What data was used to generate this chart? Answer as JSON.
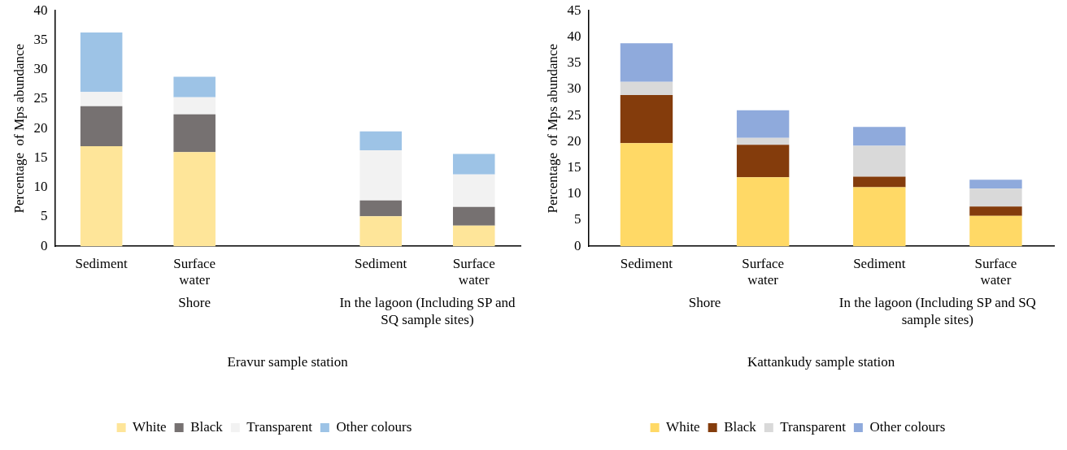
{
  "chart_data": [
    {
      "type": "bar",
      "stacked": true,
      "xlabel": "Eravur sample station",
      "ylabel": "Percentage  of Mps abundance",
      "categories": [
        "Sediment",
        "Surface water",
        null,
        "Sediment",
        "Surface water"
      ],
      "annotations": [
        "Shore",
        "In the lagoon (Including SP and SQ sample sites)"
      ],
      "series": [
        {
          "name": "White",
          "color": "#fee599",
          "values": [
            17,
            16,
            null,
            5.1,
            3.5
          ]
        },
        {
          "name": "Black",
          "color": "#767171",
          "values": [
            6.8,
            6.4,
            null,
            2.7,
            3.2
          ]
        },
        {
          "name": "Transparent",
          "color": "#f2f2f2",
          "values": [
            2.4,
            2.9,
            null,
            8.5,
            5.5
          ]
        },
        {
          "name": "Other colours",
          "color": "#9dc3e6",
          "values": [
            10.1,
            3.5,
            null,
            3.2,
            3.5
          ]
        }
      ],
      "ylim": [
        0,
        40
      ],
      "yticks": [
        0,
        5,
        10,
        15,
        20,
        25,
        30,
        35,
        40
      ],
      "grid": false,
      "legend": "bottom"
    },
    {
      "type": "bar",
      "stacked": true,
      "xlabel": "Kattankudy sample station",
      "ylabel": "Percentage  of Mps abundance",
      "categories": [
        "Sediment",
        "Surface water",
        "Sediment",
        "Surface water"
      ],
      "annotations": [
        "Shore",
        "In the lagoon (Including SP and SQ sample sites)"
      ],
      "series": [
        {
          "name": "White",
          "color": "#ffd966",
          "values": [
            19.7,
            13.2,
            11.3,
            5.8
          ]
        },
        {
          "name": "Black",
          "color": "#843c0c",
          "values": [
            9.2,
            6.2,
            2,
            1.8
          ]
        },
        {
          "name": "Transparent",
          "color": "#d9d9d9",
          "values": [
            2.5,
            1.3,
            5.9,
            3.4
          ]
        },
        {
          "name": "Other colours",
          "color": "#8faadc",
          "values": [
            7.4,
            5.3,
            3.6,
            1.7
          ]
        }
      ],
      "ylim": [
        0,
        45
      ],
      "yticks": [
        0,
        5,
        10,
        15,
        20,
        25,
        30,
        35,
        40,
        45
      ],
      "grid": false,
      "legend": "bottom"
    }
  ]
}
